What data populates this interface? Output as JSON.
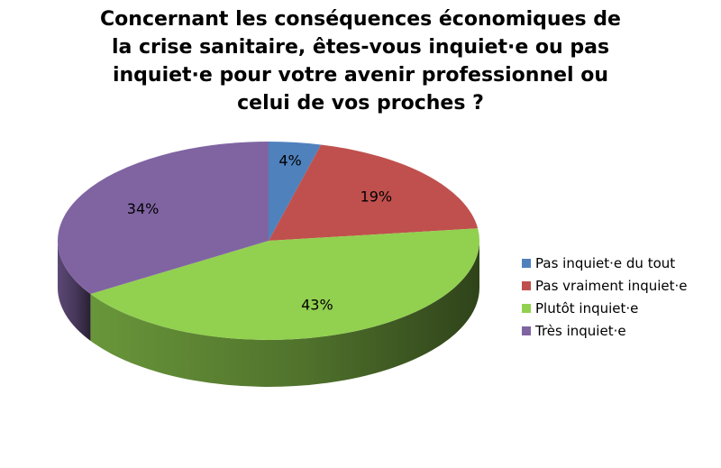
{
  "chart_data": {
    "type": "pie",
    "title_lines": [
      "Concernant les conséquences économiques de",
      "la crise sanitaire, êtes-vous inquiet·e ou pas",
      "inquiet·e pour votre avenir professionnel ou",
      "celui de vos proches ?"
    ],
    "categories": [
      "Pas inquiet·e du tout",
      "Pas vraiment inquiet·e",
      "Plutôt inquiet·e",
      "Très inquiet·e"
    ],
    "values": [
      4,
      19,
      43,
      34
    ],
    "data_labels": [
      "4%",
      "19%",
      "43%",
      "34%"
    ],
    "colors": [
      "#4f81bd",
      "#c0504d",
      "#92d050",
      "#8064a2"
    ],
    "style": "3d",
    "legend_position": "right"
  }
}
